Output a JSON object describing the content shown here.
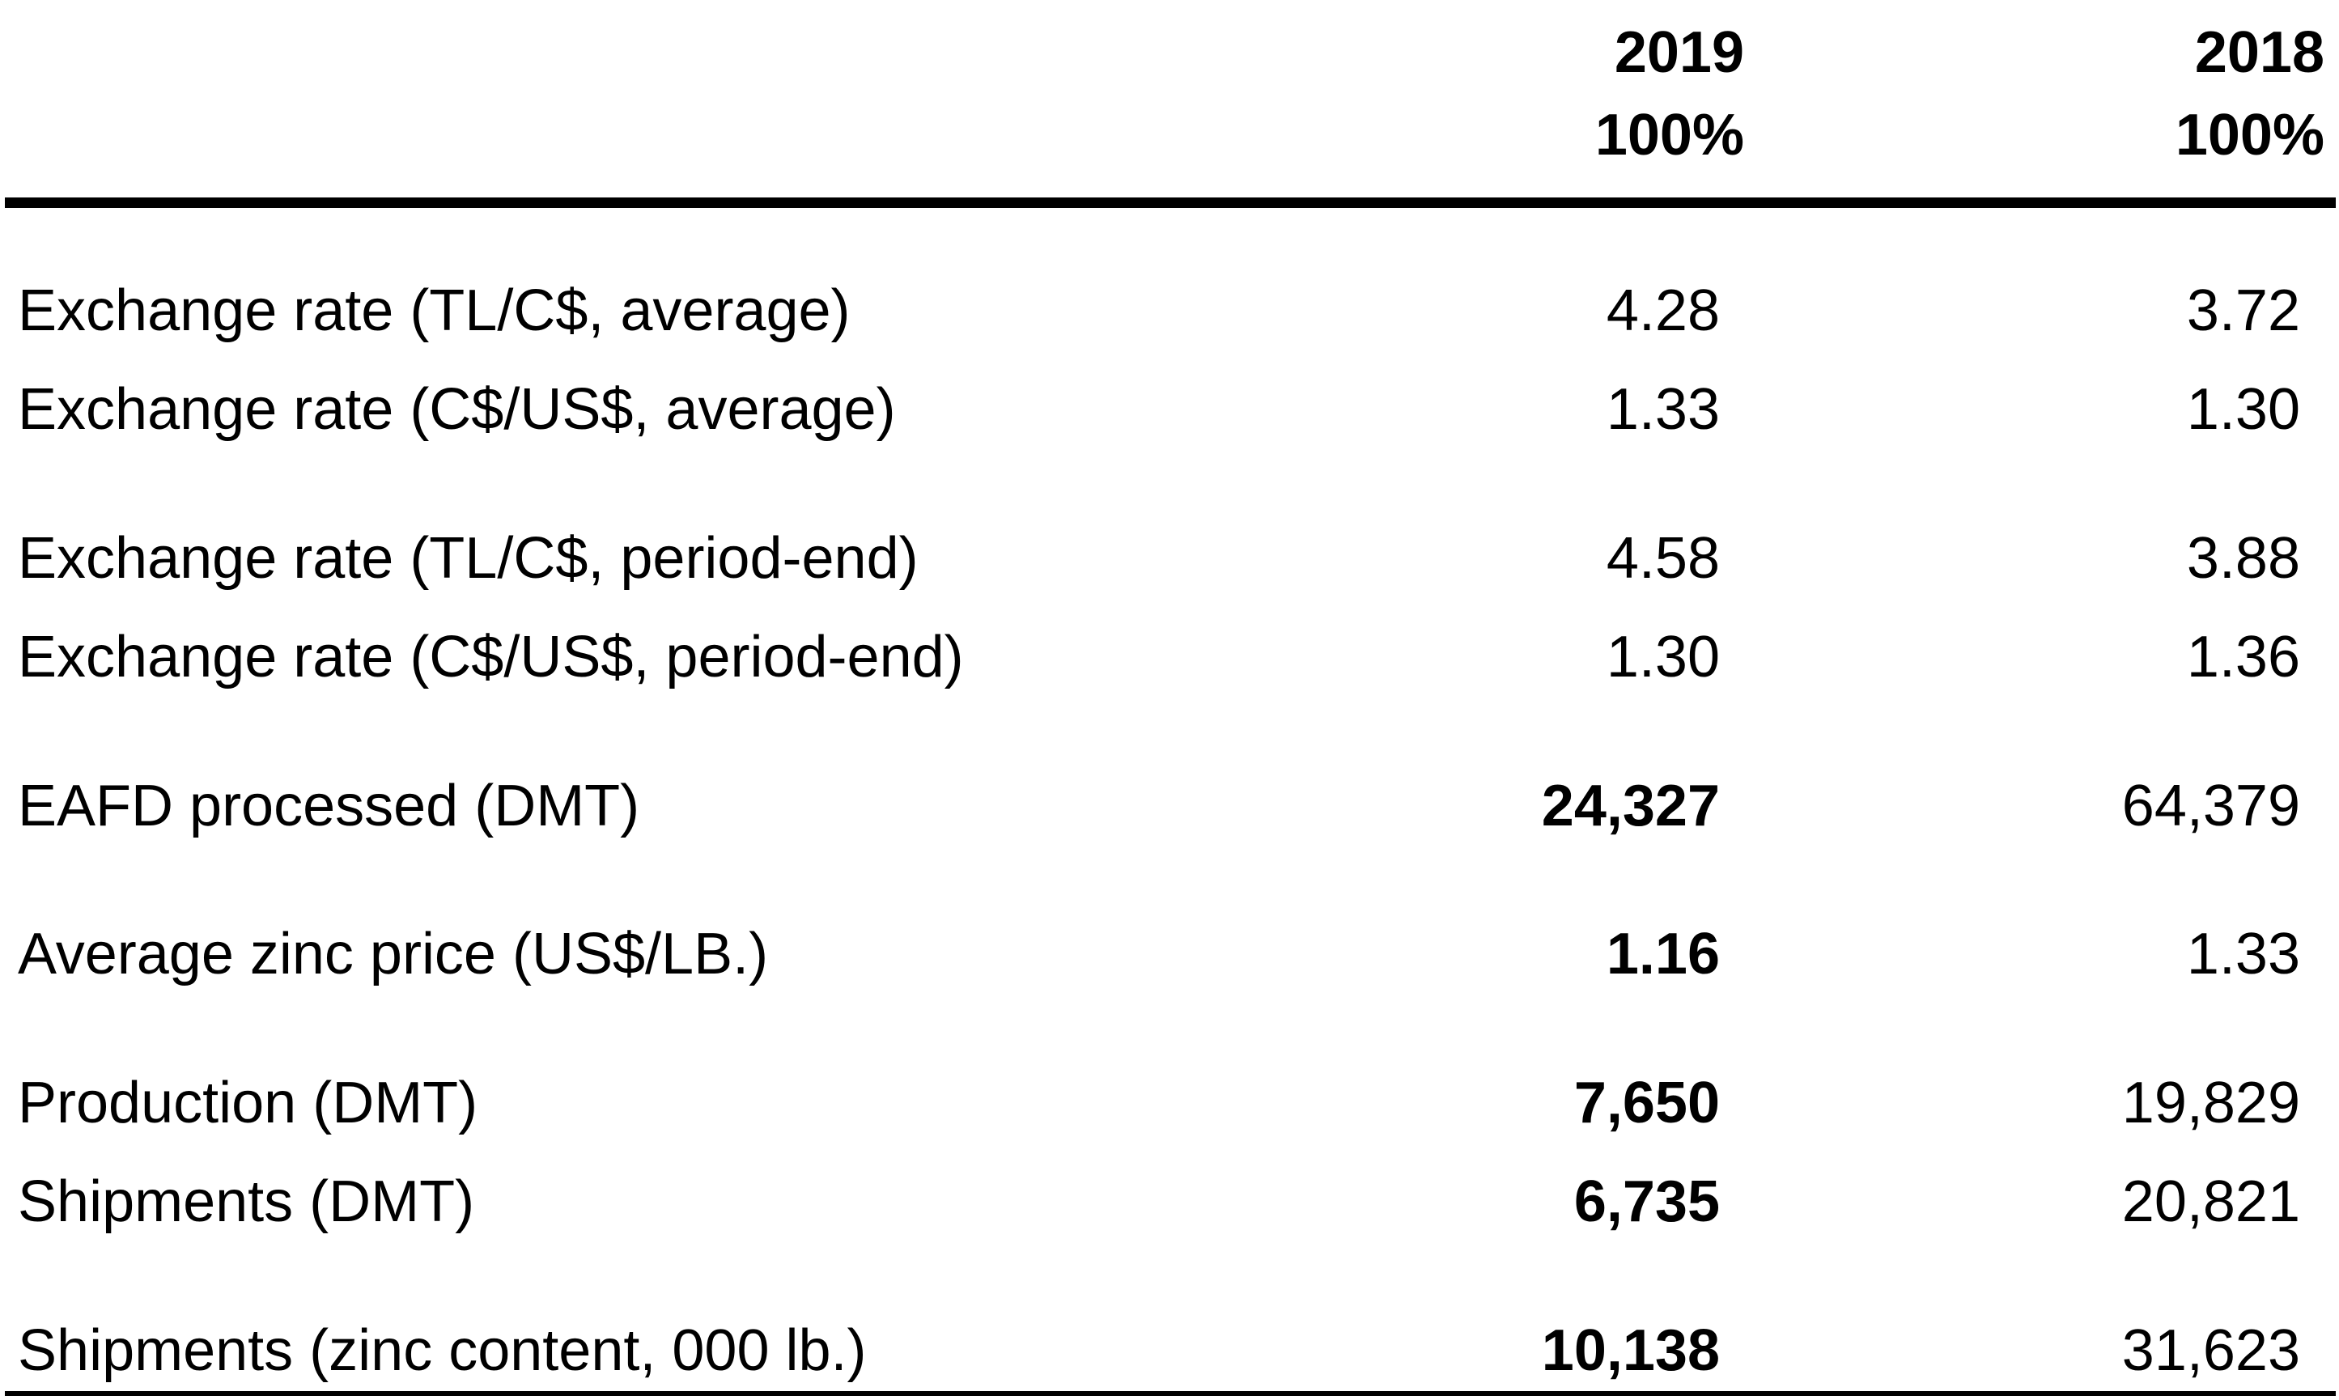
{
  "header": {
    "col_2019_year": "2019",
    "col_2019_pct": "100%",
    "col_2018_year": "2018",
    "col_2018_pct": "100%"
  },
  "rows": [
    {
      "label": "Exchange rate (TL/C$, average)",
      "v2019": "4.28",
      "v2018": "3.72"
    },
    {
      "label": "Exchange rate (C$/US$, average)",
      "v2019": "1.33",
      "v2018": "1.30"
    },
    {
      "label": "Exchange rate (TL/C$, period-end)",
      "v2019": "4.58",
      "v2018": "3.88"
    },
    {
      "label": "Exchange rate (C$/US$, period-end)",
      "v2019": "1.30",
      "v2018": "1.36"
    },
    {
      "label": "EAFD processed (DMT)",
      "v2019": "24,327",
      "v2018": "64,379"
    },
    {
      "label": "Average zinc price (US$/LB.)",
      "v2019": "1.16",
      "v2018": "1.33"
    },
    {
      "label": "Production (DMT)",
      "v2019": "7,650",
      "v2018": "19,829"
    },
    {
      "label": "Shipments (DMT)",
      "v2019": "6,735",
      "v2018": "20,821"
    },
    {
      "label": "Shipments (zinc content, 000 lb.)",
      "v2019": "10,138",
      "v2018": "31,623"
    }
  ]
}
